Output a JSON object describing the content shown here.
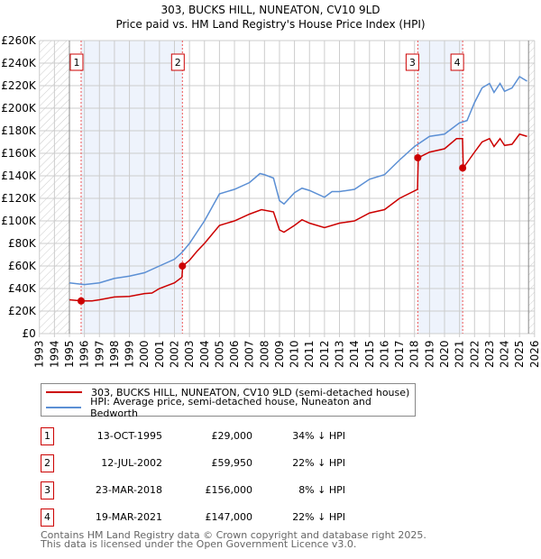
{
  "chart_data": {
    "type": "line",
    "title": "303, BUCKS HILL, NUNEATON, CV10 9LD",
    "subtitle": "Price paid vs. HM Land Registry's House Price Index (HPI)",
    "xlim": [
      1993,
      2026
    ],
    "ylim": [
      0,
      260000
    ],
    "x_ticks": [
      "1993",
      "1994",
      "1995",
      "1996",
      "1997",
      "1998",
      "1999",
      "2000",
      "2001",
      "2002",
      "2003",
      "2004",
      "2005",
      "2006",
      "2007",
      "2008",
      "2009",
      "2010",
      "2011",
      "2012",
      "2013",
      "2014",
      "2015",
      "2016",
      "2017",
      "2018",
      "2019",
      "2020",
      "2021",
      "2022",
      "2023",
      "2024",
      "2025",
      "2026"
    ],
    "y_ticks": [
      "£0",
      "£20K",
      "£40K",
      "£60K",
      "£80K",
      "£100K",
      "£120K",
      "£140K",
      "£160K",
      "£180K",
      "£200K",
      "£220K",
      "£240K",
      "£260K"
    ],
    "grid": true,
    "colors": {
      "property": "#cc0000",
      "hpi": "#5b8fd4",
      "band": "#eef3fc"
    },
    "series": [
      {
        "name": "303, BUCKS HILL, NUNEATON, CV10 9LD (semi-detached house)",
        "x": [
          1995,
          1995.8,
          1996.5,
          1997,
          1998,
          1999,
          2000,
          2000.5,
          2001,
          2002,
          2002.5,
          2002.55,
          2003,
          2003.5,
          2004,
          2004.5,
          2005,
          2006,
          2007,
          2007.8,
          2008.6,
          2009,
          2009.3,
          2010,
          2010.5,
          2011,
          2012,
          2013,
          2014,
          2015,
          2016,
          2017,
          2018.2,
          2018.25,
          2019,
          2020,
          2020.8,
          2021.2,
          2021.25,
          2022,
          2022.5,
          2023,
          2023.3,
          2023.7,
          2024,
          2024.5,
          2025,
          2025.5
        ],
        "y": [
          30000,
          29000,
          29000,
          30000,
          32500,
          33000,
          35500,
          36000,
          40000,
          45000,
          50000,
          60000,
          65000,
          73000,
          80000,
          88000,
          96000,
          100000,
          106000,
          110000,
          108000,
          92000,
          90000,
          96000,
          101000,
          98000,
          94000,
          98000,
          100000,
          107000,
          110000,
          120000,
          128000,
          156000,
          161000,
          164000,
          173000,
          173000,
          147000,
          161000,
          170000,
          173000,
          166000,
          173000,
          167000,
          168000,
          177000,
          175000
        ]
      },
      {
        "name": "HPI: Average price, semi-detached house, Nuneaton and Bedworth",
        "x": [
          1995,
          1996,
          1997,
          1998,
          1999,
          2000,
          2001,
          2002,
          2002.5,
          2003,
          2003.5,
          2004,
          2004.5,
          2005,
          2006,
          2007,
          2007.7,
          2008,
          2008.6,
          2009,
          2009.3,
          2010,
          2010.5,
          2011,
          2012,
          2012.5,
          2013,
          2014,
          2015,
          2016,
          2017,
          2018,
          2019,
          2020,
          2021,
          2021.5,
          2022,
          2022.5,
          2023,
          2023.3,
          2023.7,
          2024,
          2024.5,
          2025,
          2025.5
        ],
        "y": [
          45000,
          43500,
          45000,
          49000,
          51000,
          54000,
          60000,
          66000,
          72000,
          80000,
          90000,
          100000,
          112000,
          124000,
          128000,
          134000,
          142000,
          141000,
          138000,
          118000,
          115000,
          125000,
          129000,
          127000,
          121000,
          126000,
          126000,
          128000,
          137000,
          141000,
          154000,
          166000,
          175000,
          177000,
          187000,
          189000,
          205000,
          218000,
          222000,
          214000,
          222000,
          215000,
          218000,
          228000,
          224000
        ]
      }
    ],
    "sales": [
      {
        "label": "1",
        "x": 1995.78,
        "y": 29000,
        "date": "13-OCT-1995",
        "price": "£29,000",
        "hpi": "34% ↓ HPI"
      },
      {
        "label": "2",
        "x": 2002.53,
        "y": 59950,
        "date": "12-JUL-2002",
        "price": "£59,950",
        "hpi": "22% ↓ HPI"
      },
      {
        "label": "3",
        "x": 2018.22,
        "y": 156000,
        "date": "23-MAR-2018",
        "price": "£156,000",
        "hpi": "8% ↓ HPI"
      },
      {
        "label": "4",
        "x": 2021.21,
        "y": 147000,
        "date": "19-MAR-2021",
        "price": "£147,000",
        "hpi": "22% ↓ HPI"
      }
    ],
    "legend_position": "bottom"
  },
  "footer": {
    "line1": "Contains HM Land Registry data © Crown copyright and database right 2025.",
    "line2": "This data is licensed under the Open Government Licence v3.0."
  }
}
